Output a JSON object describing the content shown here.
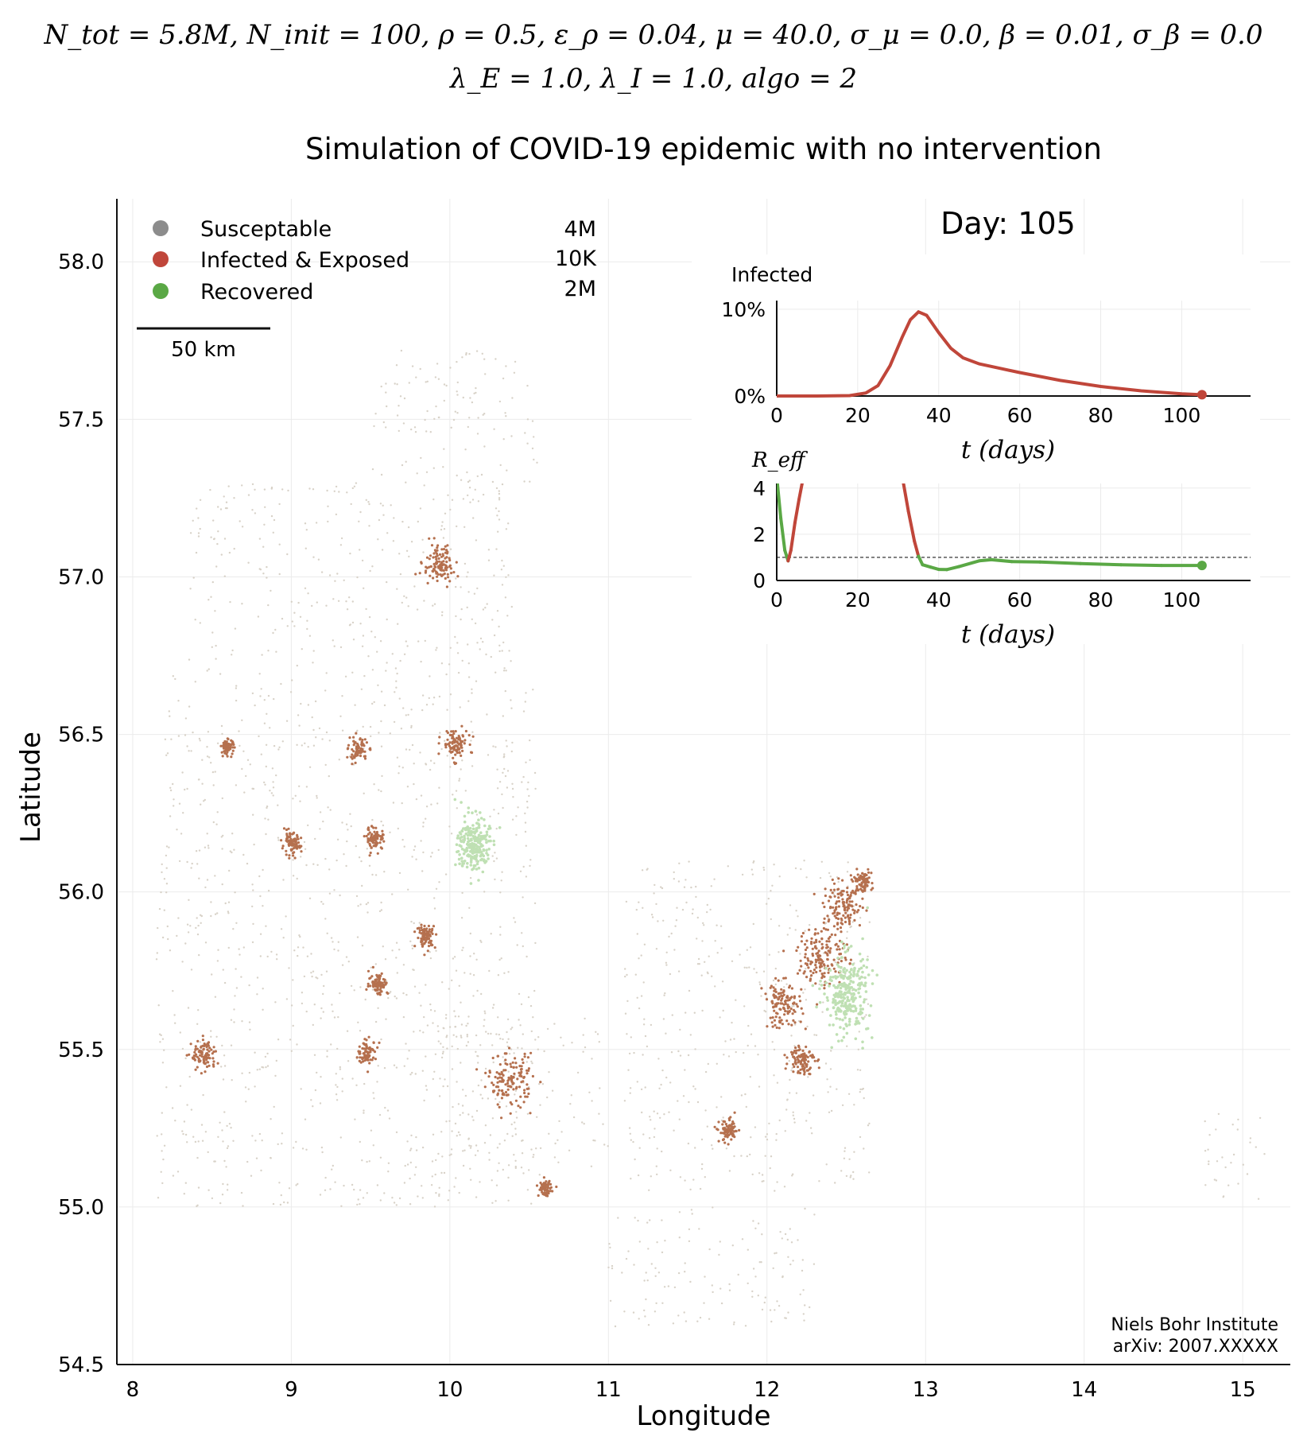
{
  "header": {
    "params_line1": "N_tot = 5.8M, N_init = 100, ρ = 0.5, ε_ρ = 0.04, μ = 40.0, σ_μ = 0.0, β = 0.01, σ_β = 0.0",
    "params_line2": "λ_E = 1.0, λ_I = 1.0, algo = 2",
    "title": "Simulation of COVID-19 epidemic with no intervention"
  },
  "colors": {
    "susceptible": "#8c8c8c",
    "infected": "#c0463a",
    "recovered": "#5aa845",
    "land_light": "#d8d2c8",
    "infected_cluster": "#b5704e",
    "recovered_cluster": "#bfe0b3",
    "grid": "#ebebeb"
  },
  "legend": {
    "items": [
      {
        "label": "Susceptable",
        "count": "4M",
        "color": "#8c8c8c"
      },
      {
        "label": "Infected & Exposed",
        "count": "10K",
        "color": "#c0463a"
      },
      {
        "label": "Recovered",
        "count": "2M",
        "color": "#5aa845"
      }
    ],
    "scalebar_label": "50 km"
  },
  "day_label": "Day: 105",
  "credit": {
    "line1": "Niels Bohr Institute",
    "line2": "arXiv: 2007.XXXXX"
  },
  "chart_data": [
    {
      "type": "scatter",
      "title": "Simulation of COVID-19 epidemic with no intervention",
      "xlabel": "Longitude",
      "ylabel": "Latitude",
      "xlim": [
        7.9,
        15.3
      ],
      "ylim": [
        54.5,
        58.2
      ],
      "xticks": [
        8,
        9,
        10,
        11,
        12,
        13,
        14,
        15
      ],
      "yticks": [
        54.5,
        55.0,
        55.5,
        56.0,
        56.5,
        57.0,
        57.5,
        58.0
      ],
      "ytick_labels": [
        "54.5",
        "55.0",
        "55.5",
        "56.0",
        "56.5",
        "57.0",
        "57.5",
        "58.0"
      ],
      "grid": true,
      "legend": "top-left",
      "infected_clusters": [
        {
          "lon": 9.93,
          "lat": 57.04,
          "spread": 0.05
        },
        {
          "lon": 10.03,
          "lat": 56.47,
          "spread": 0.04
        },
        {
          "lon": 9.42,
          "lat": 56.45,
          "spread": 0.03
        },
        {
          "lon": 9.53,
          "lat": 56.17,
          "spread": 0.03
        },
        {
          "lon": 9.0,
          "lat": 56.15,
          "spread": 0.03
        },
        {
          "lon": 8.6,
          "lat": 56.46,
          "spread": 0.02
        },
        {
          "lon": 9.85,
          "lat": 55.86,
          "spread": 0.03
        },
        {
          "lon": 9.55,
          "lat": 55.71,
          "spread": 0.03
        },
        {
          "lon": 9.48,
          "lat": 55.49,
          "spread": 0.03
        },
        {
          "lon": 8.45,
          "lat": 55.48,
          "spread": 0.04
        },
        {
          "lon": 10.38,
          "lat": 55.4,
          "spread": 0.07
        },
        {
          "lon": 10.6,
          "lat": 55.06,
          "spread": 0.02
        },
        {
          "lon": 11.76,
          "lat": 55.24,
          "spread": 0.03
        },
        {
          "lon": 12.1,
          "lat": 55.64,
          "spread": 0.06
        },
        {
          "lon": 12.35,
          "lat": 55.8,
          "spread": 0.08
        },
        {
          "lon": 12.48,
          "lat": 55.95,
          "spread": 0.06
        },
        {
          "lon": 12.6,
          "lat": 56.03,
          "spread": 0.03
        },
        {
          "lon": 12.22,
          "lat": 55.47,
          "spread": 0.04
        }
      ],
      "recovered_clusters": [
        {
          "lon": 10.15,
          "lat": 56.15,
          "spread": 0.05
        },
        {
          "lon": 12.5,
          "lat": 55.68,
          "spread": 0.07
        }
      ]
    },
    {
      "type": "line",
      "title": "Infected",
      "xlabel": "t (days)",
      "ylabel": "",
      "xlim": [
        0,
        117
      ],
      "ylim": [
        0,
        11
      ],
      "xticks": [
        0,
        20,
        40,
        60,
        80,
        100
      ],
      "yticks": [
        0,
        10
      ],
      "ytick_labels": [
        "0%",
        "10%"
      ],
      "x": [
        0,
        10,
        18,
        22,
        25,
        28,
        31,
        33,
        35,
        37,
        40,
        43,
        46,
        50,
        55,
        60,
        70,
        80,
        90,
        100,
        105
      ],
      "series": [
        {
          "values": [
            0,
            0,
            0.05,
            0.35,
            1.2,
            3.5,
            6.8,
            8.8,
            9.7,
            9.3,
            7.3,
            5.5,
            4.4,
            3.7,
            3.2,
            2.7,
            1.8,
            1.1,
            0.6,
            0.25,
            0.15
          ]
        }
      ]
    },
    {
      "type": "line",
      "title": "R_eff",
      "xlabel": "t (days)",
      "ylabel": "",
      "xlim": [
        0,
        117
      ],
      "ylim": [
        0,
        4.2
      ],
      "xticks": [
        0,
        20,
        40,
        60,
        80,
        100
      ],
      "yticks": [
        0,
        2,
        4
      ],
      "reference_line": 1,
      "x": [
        0,
        1,
        2,
        2.8,
        3.5,
        4.5,
        5.5,
        6.6,
        31,
        32.5,
        34,
        35,
        36,
        38,
        40,
        42,
        45,
        50,
        53,
        58,
        65,
        75,
        85,
        95,
        105
      ],
      "series": [
        {
          "values": [
            4.5,
            2.7,
            1.3,
            0.85,
            1.3,
            2.5,
            3.5,
            4.5,
            4.5,
            3.0,
            1.7,
            1.05,
            0.68,
            0.58,
            0.48,
            0.47,
            0.6,
            0.85,
            0.9,
            0.82,
            0.8,
            0.73,
            0.68,
            0.65,
            0.65
          ]
        }
      ]
    }
  ]
}
